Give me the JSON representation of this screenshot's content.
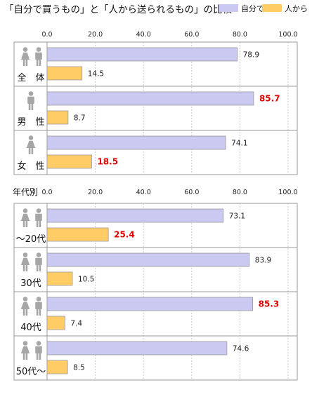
{
  "chart_data": {
    "type": "bar",
    "orientation": "horizontal",
    "title": "「自分で買うもの」と「人から送られるもの」の比較",
    "xlim": [
      0,
      100
    ],
    "ticks": [
      "0.0",
      "20.0",
      "40.0",
      "60.0",
      "80.0",
      "100.0"
    ],
    "legend": {
      "position": "top-right",
      "entries": [
        "自分で",
        "人から"
      ]
    },
    "colors": {
      "self": "#C9C9F2",
      "others": "#FFCC66",
      "highlight": "#E00000",
      "border": "#9A9A9A"
    },
    "groups": [
      {
        "section": "",
        "rows": [
          {
            "label": "全　体",
            "people": "both",
            "self": 78.9,
            "others": 14.5,
            "self_label": "78.9",
            "others_label": "14.5",
            "highlight": ""
          },
          {
            "label": "男　性",
            "people": "male",
            "self": 85.7,
            "others": 8.7,
            "self_label": "85.7",
            "others_label": "8.7",
            "highlight": "self"
          },
          {
            "label": "女　性",
            "people": "female",
            "self": 74.1,
            "others": 18.5,
            "self_label": "74.1",
            "others_label": "18.5",
            "highlight": "others"
          }
        ]
      },
      {
        "section": "年代別",
        "rows": [
          {
            "label": "～20代",
            "people": "both",
            "self": 73.1,
            "others": 25.4,
            "self_label": "73.1",
            "others_label": "25.4",
            "highlight": "others"
          },
          {
            "label": "30代",
            "people": "both",
            "self": 83.9,
            "others": 10.5,
            "self_label": "83.9",
            "others_label": "10.5",
            "highlight": ""
          },
          {
            "label": "40代",
            "people": "both",
            "self": 85.3,
            "others": 7.4,
            "self_label": "85.3",
            "others_label": "7.4",
            "highlight": "self"
          },
          {
            "label": "50代～",
            "people": "both",
            "self": 74.6,
            "others": 8.5,
            "self_label": "74.6",
            "others_label": "8.5",
            "highlight": ""
          }
        ]
      }
    ]
  }
}
